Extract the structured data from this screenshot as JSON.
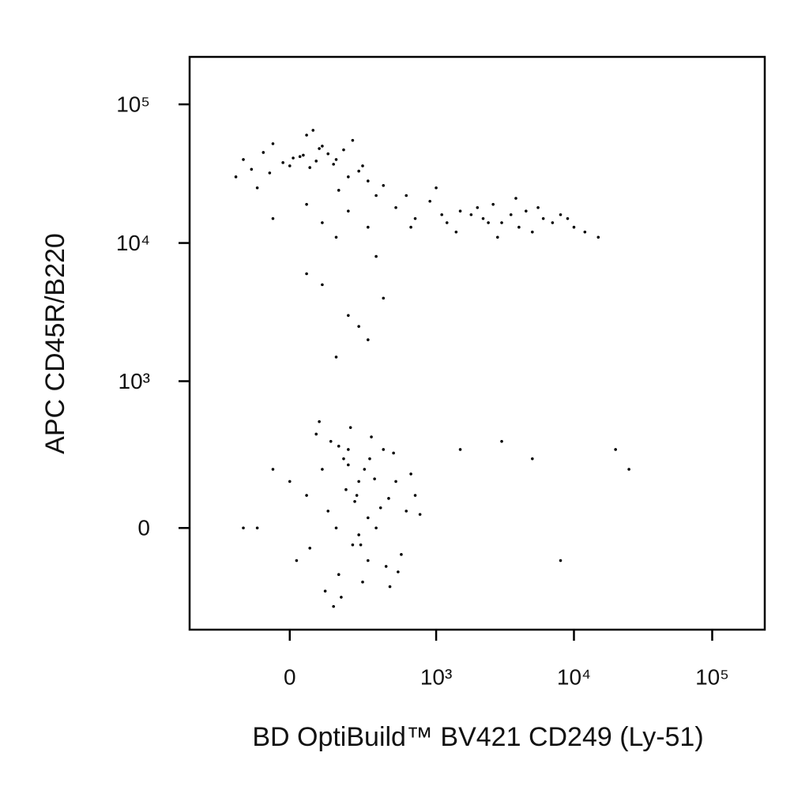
{
  "chart_data": {
    "type": "scatter",
    "x_label": "BD OptiBuild™ BV421 CD249 (Ly-51)",
    "y_label": "APC CD45R/B220",
    "scale": "biexponential",
    "color": "#000000",
    "xlim": [
      -450,
      240000
    ],
    "ylim": [
      -460,
      220000
    ],
    "xticks": [
      0,
      {
        "value": 1000,
        "label": "10³"
      },
      {
        "value": 10000,
        "label": "10⁴"
      },
      {
        "value": 100000,
        "label": "10⁵"
      }
    ],
    "yticks": [
      0,
      {
        "value": 1000,
        "label": "10³"
      },
      {
        "value": 10000,
        "label": "10⁴"
      },
      {
        "value": 100000,
        "label": "10⁵"
      }
    ],
    "x": [
      -150,
      -80,
      -20,
      30,
      60,
      100,
      150,
      200,
      -100,
      0,
      50,
      120,
      250,
      300,
      -50,
      80,
      180,
      350,
      -180,
      10,
      400,
      220,
      -120,
      90,
      140,
      40,
      -60,
      270,
      160,
      70,
      500,
      700,
      900,
      1200,
      1500,
      1800,
      2200,
      2600,
      3000,
      3500,
      4000,
      4500,
      5000,
      6000,
      7000,
      8000,
      10000,
      12000,
      15000,
      600,
      1000,
      1400,
      2000,
      2800,
      3800,
      5500,
      650,
      1100,
      2400,
      9000,
      -50,
      100,
      200,
      300,
      150,
      50,
      100,
      200,
      300,
      50,
      150,
      400,
      250,
      350,
      50,
      100,
      150,
      200,
      250,
      300,
      120,
      180,
      220,
      80,
      160,
      240,
      280,
      350,
      400,
      450,
      500,
      600,
      700,
      20,
      -50,
      -100,
      130,
      170,
      210,
      260,
      310,
      90,
      140,
      190,
      230,
      270,
      320,
      380,
      420,
      480,
      550,
      650,
      -150,
      0,
      110,
      200,
      300,
      60,
      160,
      250,
      340,
      440,
      520,
      760,
      1500,
      3000,
      5000,
      8000,
      20000,
      25000
    ],
    "values": [
      40000,
      45000,
      38000,
      42000,
      35000,
      50000,
      40000,
      30000,
      25000,
      36000,
      60000,
      44000,
      33000,
      28000,
      52000,
      39000,
      47000,
      22000,
      30000,
      41000,
      26000,
      55000,
      34000,
      48000,
      37000,
      43000,
      32000,
      36000,
      24000,
      65000,
      18000,
      15000,
      20000,
      14000,
      17000,
      16000,
      15000,
      19000,
      14000,
      16000,
      13000,
      17000,
      12000,
      15000,
      14000,
      16000,
      13000,
      12000,
      11000,
      22000,
      25000,
      12000,
      18000,
      11000,
      21000,
      18000,
      13000,
      16000,
      14000,
      15000,
      15000,
      14000,
      17000,
      13000,
      11000,
      19000,
      5000,
      3000,
      2000,
      6000,
      1500,
      4000,
      2500,
      8000,
      100,
      200,
      0,
      300,
      150,
      -100,
      50,
      250,
      -50,
      400,
      -150,
      100,
      200,
      0,
      300,
      -200,
      150,
      50,
      100,
      -100,
      200,
      0,
      350,
      -250,
      450,
      -50,
      250,
      500,
      -300,
      120,
      80,
      -180,
      380,
      60,
      -120,
      280,
      -80,
      180,
      0,
      150,
      -220,
      220,
      30,
      -60,
      320,
      -20,
      160,
      90,
      -140,
      40,
      300,
      350,
      250,
      -100,
      300,
      200
    ]
  }
}
